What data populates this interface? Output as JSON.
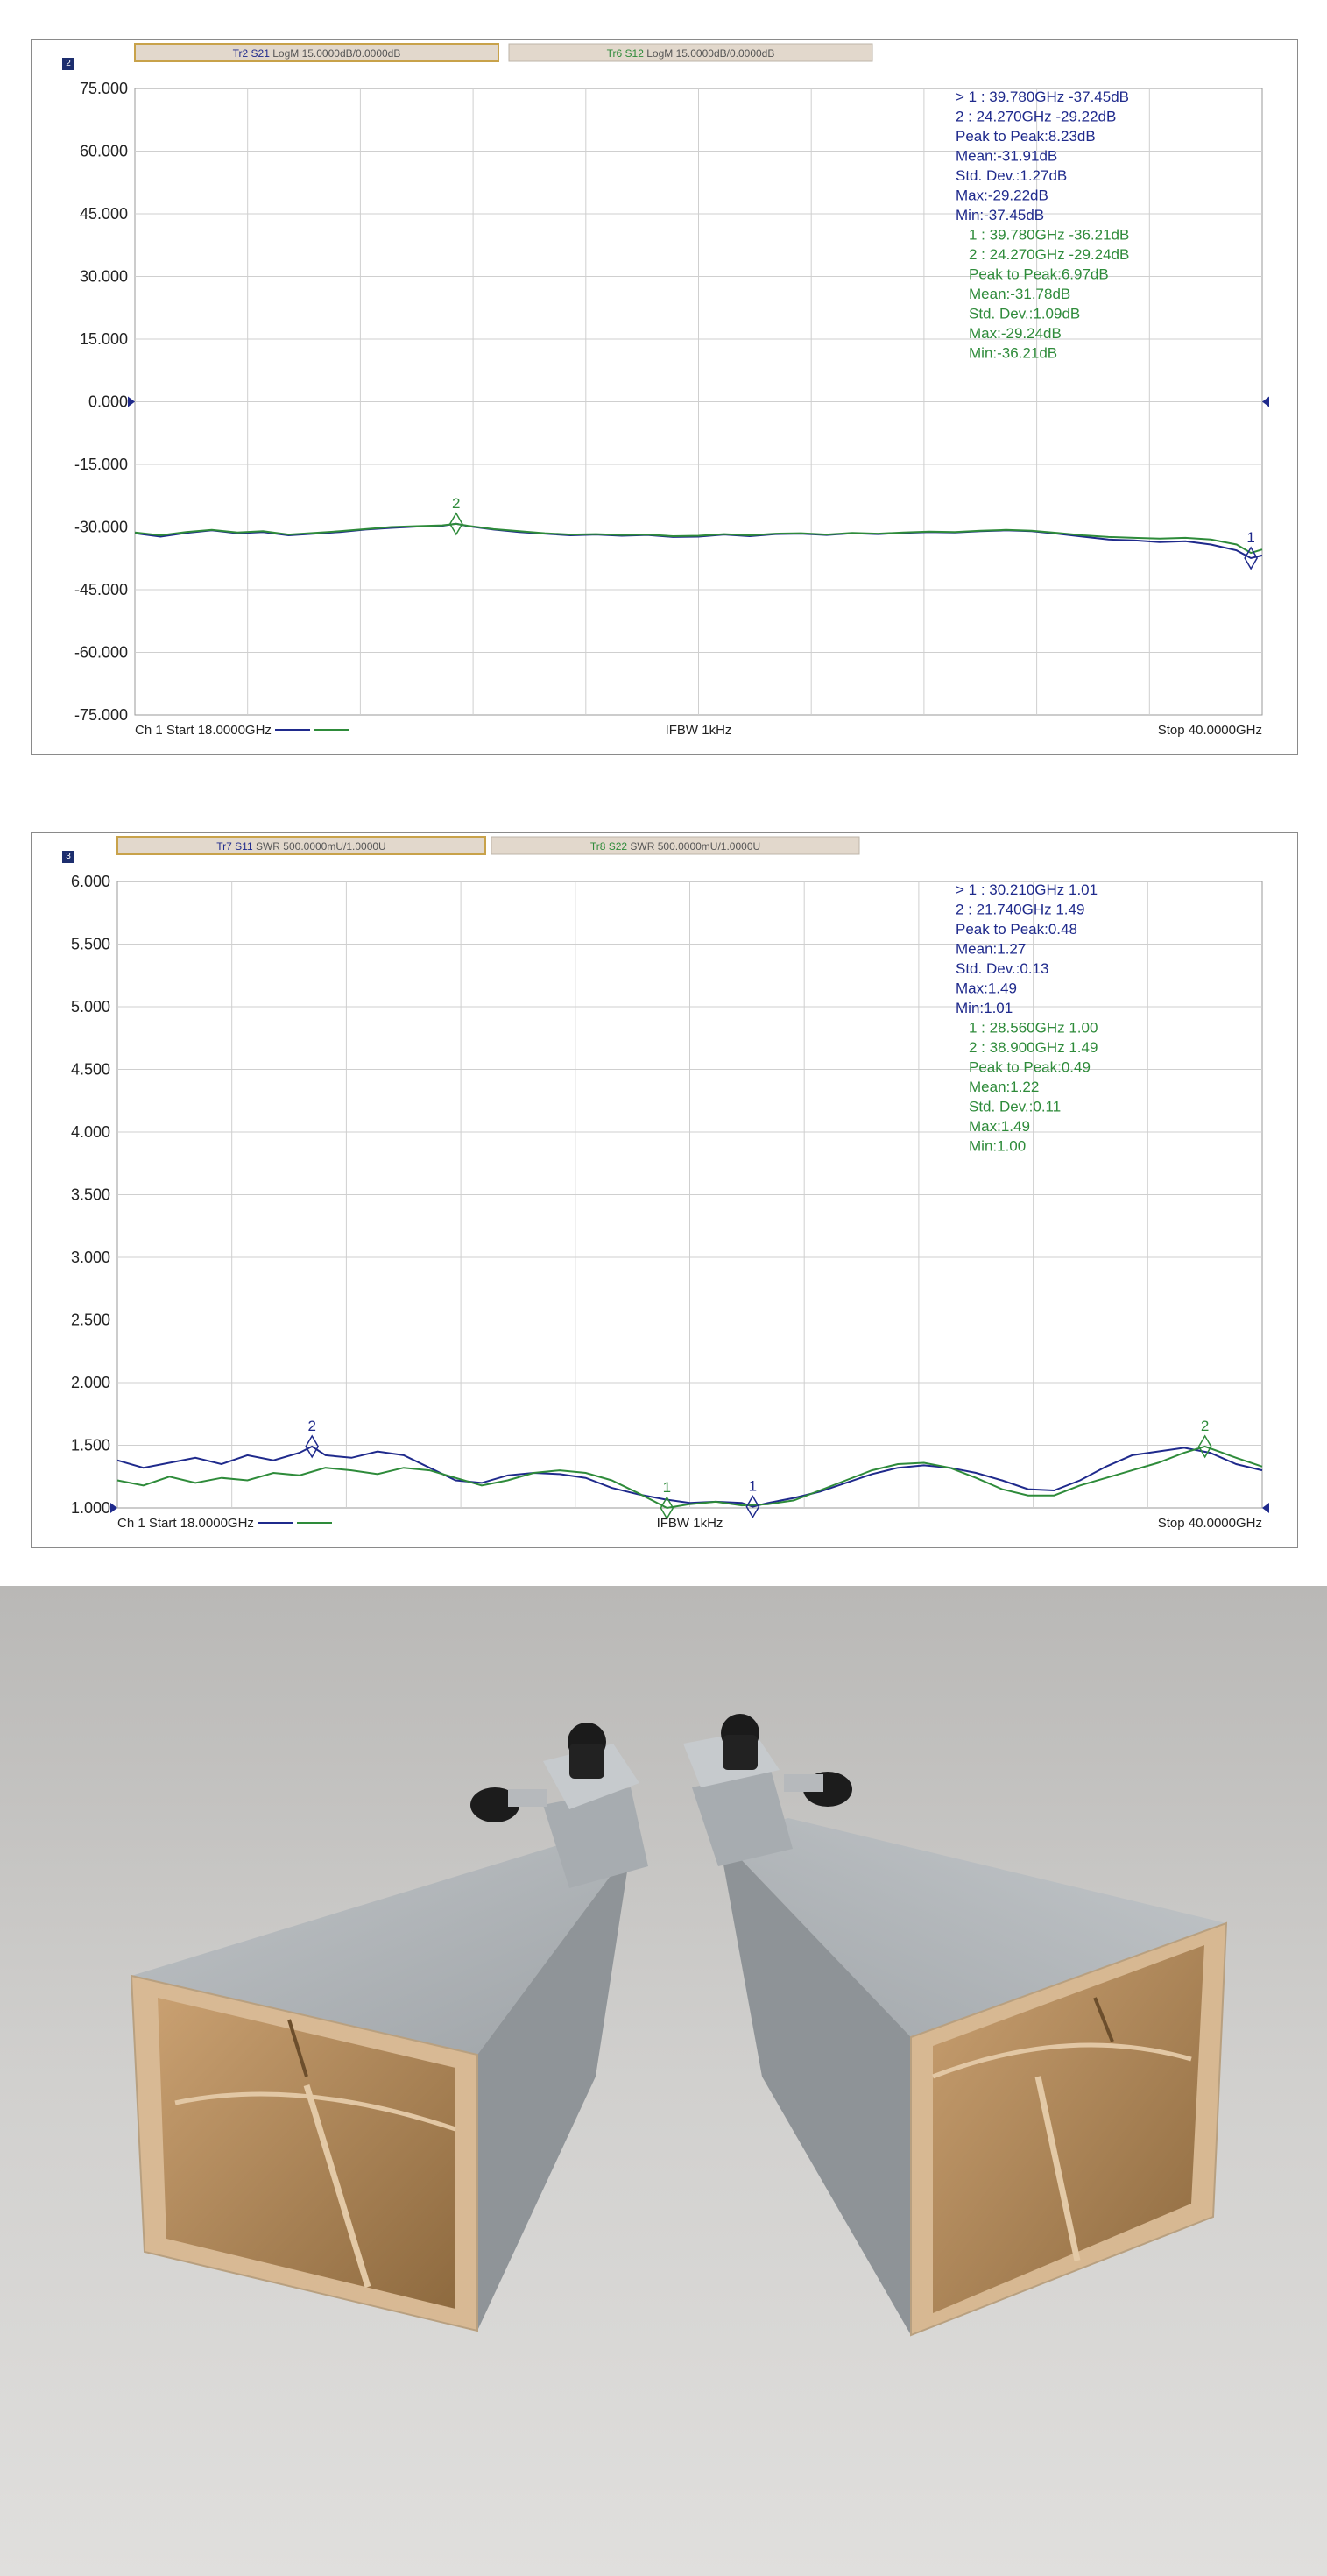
{
  "chart_data": [
    {
      "type": "line",
      "channel_badge": "2",
      "ylim": [
        -75,
        75
      ],
      "xlim": [
        18,
        40
      ],
      "y_ticks": [
        "75.000",
        "60.000",
        "45.000",
        "30.000",
        "15.000",
        "0.000",
        "-15.000",
        "-30.000",
        "-45.000",
        "-60.000",
        "-75.000"
      ],
      "reference_level": 0,
      "traces": [
        {
          "tag": "Tr2",
          "param": "S21",
          "format": "LogM 15.0000dB/0.0000dB",
          "color": "#1f2a8c"
        },
        {
          "tag": "Tr6",
          "param": "S12",
          "format": "LogM 15.0000dB/0.0000dB",
          "color": "#2e8b3a"
        }
      ],
      "series": [
        {
          "name": "S21",
          "color": "#1f2a8c",
          "x": [
            18.0,
            18.5,
            19.0,
            19.5,
            20.0,
            20.5,
            21.0,
            21.5,
            22.0,
            22.5,
            23.0,
            23.5,
            24.0,
            24.27,
            24.5,
            25.0,
            25.5,
            26.0,
            26.5,
            27.0,
            27.5,
            28.0,
            28.5,
            29.0,
            29.5,
            30.0,
            30.5,
            31.0,
            31.5,
            32.0,
            32.5,
            33.0,
            33.5,
            34.0,
            34.5,
            35.0,
            35.5,
            36.0,
            36.5,
            37.0,
            37.5,
            38.0,
            38.5,
            39.0,
            39.5,
            39.78,
            40.0
          ],
          "y": [
            -31.5,
            -32.3,
            -31.4,
            -30.8,
            -31.5,
            -31.2,
            -32.0,
            -31.6,
            -31.2,
            -30.6,
            -30.2,
            -29.9,
            -29.7,
            -29.22,
            -29.8,
            -30.6,
            -31.2,
            -31.6,
            -32.0,
            -31.8,
            -32.1,
            -31.9,
            -32.4,
            -32.3,
            -31.8,
            -32.2,
            -31.7,
            -31.6,
            -31.9,
            -31.5,
            -31.7,
            -31.4,
            -31.2,
            -31.3,
            -31.0,
            -30.8,
            -31.0,
            -31.6,
            -32.3,
            -33.0,
            -33.2,
            -33.6,
            -33.4,
            -34.2,
            -35.6,
            -37.45,
            -36.8
          ]
        },
        {
          "name": "S12",
          "color": "#2e8b3a",
          "x": [
            18.0,
            18.5,
            19.0,
            19.5,
            20.0,
            20.5,
            21.0,
            21.5,
            22.0,
            22.5,
            23.0,
            23.5,
            24.0,
            24.27,
            24.5,
            25.0,
            25.5,
            26.0,
            26.5,
            27.0,
            27.5,
            28.0,
            28.5,
            29.0,
            29.5,
            30.0,
            30.5,
            31.0,
            31.5,
            32.0,
            32.5,
            33.0,
            33.5,
            34.0,
            34.5,
            35.0,
            35.5,
            36.0,
            36.5,
            37.0,
            37.5,
            38.0,
            38.5,
            39.0,
            39.5,
            39.78,
            40.0
          ],
          "y": [
            -31.3,
            -32.0,
            -31.2,
            -30.7,
            -31.3,
            -31.0,
            -31.8,
            -31.4,
            -31.0,
            -30.5,
            -30.0,
            -29.8,
            -29.6,
            -29.24,
            -29.7,
            -30.5,
            -31.0,
            -31.5,
            -31.8,
            -31.7,
            -31.9,
            -31.8,
            -32.2,
            -32.1,
            -31.7,
            -32.0,
            -31.6,
            -31.5,
            -31.8,
            -31.4,
            -31.6,
            -31.3,
            -31.1,
            -31.2,
            -30.9,
            -30.7,
            -30.9,
            -31.4,
            -32.0,
            -32.4,
            -32.6,
            -32.8,
            -32.6,
            -33.0,
            -34.2,
            -36.21,
            -35.4
          ]
        }
      ],
      "markers": [
        {
          "label": "2",
          "x": 24.27,
          "series": "S12"
        },
        {
          "label": "1",
          "x": 39.78,
          "series": "S21"
        }
      ],
      "readout": {
        "blue": [
          "> 1   : 39.780GHz      -37.45dB",
          "   2   : 24.270GHz      -29.22dB",
          "Peak to Peak:8.23dB",
          "Mean:-31.91dB",
          "Std. Dev.:1.27dB",
          "Max:-29.22dB",
          "Min:-37.45dB"
        ],
        "green": [
          "1   : 39.780GHz      -36.21dB",
          "2   : 24.270GHz      -29.24dB",
          "Peak to Peak:6.97dB",
          "Mean:-31.78dB",
          "Std. Dev.:1.09dB",
          "Max:-29.24dB",
          "Min:-36.21dB"
        ]
      },
      "footer": {
        "left": "Ch 1 Start 18.0000GHz",
        "center": "IFBW 1kHz",
        "right": "Stop 40.0000GHz"
      },
      "grid": true
    },
    {
      "type": "line",
      "channel_badge": "3",
      "ylim": [
        1.0,
        6.0
      ],
      "xlim": [
        18,
        40
      ],
      "y_ticks": [
        "6.000",
        "5.500",
        "5.000",
        "4.500",
        "4.000",
        "3.500",
        "3.000",
        "2.500",
        "2.000",
        "1.500",
        "1.000"
      ],
      "reference_level": 1.0,
      "traces": [
        {
          "tag": "Tr7",
          "param": "S11",
          "format": "SWR 500.0000mU/1.0000U",
          "color": "#1f2a8c"
        },
        {
          "tag": "Tr8",
          "param": "S22",
          "format": "SWR 500.0000mU/1.0000U",
          "color": "#2e8b3a"
        }
      ],
      "series": [
        {
          "name": "S11",
          "color": "#1f2a8c",
          "x": [
            18.0,
            18.5,
            19.0,
            19.5,
            20.0,
            20.5,
            21.0,
            21.5,
            21.74,
            22.0,
            22.5,
            23.0,
            23.5,
            24.0,
            24.5,
            25.0,
            25.5,
            26.0,
            26.5,
            27.0,
            27.5,
            28.0,
            28.5,
            29.0,
            29.5,
            30.0,
            30.21,
            30.5,
            31.0,
            31.5,
            32.0,
            32.5,
            33.0,
            33.5,
            34.0,
            34.5,
            35.0,
            35.5,
            36.0,
            36.5,
            37.0,
            37.5,
            38.0,
            38.5,
            39.0,
            39.5,
            40.0
          ],
          "y": [
            1.38,
            1.32,
            1.36,
            1.4,
            1.35,
            1.42,
            1.38,
            1.44,
            1.49,
            1.42,
            1.4,
            1.45,
            1.42,
            1.32,
            1.22,
            1.2,
            1.26,
            1.28,
            1.27,
            1.24,
            1.16,
            1.11,
            1.07,
            1.04,
            1.05,
            1.04,
            1.01,
            1.04,
            1.08,
            1.13,
            1.2,
            1.27,
            1.32,
            1.34,
            1.32,
            1.28,
            1.22,
            1.15,
            1.14,
            1.22,
            1.33,
            1.42,
            1.45,
            1.48,
            1.44,
            1.35,
            1.3
          ]
        },
        {
          "name": "S22",
          "color": "#2e8b3a",
          "x": [
            18.0,
            18.5,
            19.0,
            19.5,
            20.0,
            20.5,
            21.0,
            21.5,
            22.0,
            22.5,
            23.0,
            23.5,
            24.0,
            24.5,
            25.0,
            25.5,
            26.0,
            26.5,
            27.0,
            27.5,
            28.0,
            28.56,
            29.0,
            29.5,
            30.0,
            30.5,
            31.0,
            31.5,
            32.0,
            32.5,
            33.0,
            33.5,
            34.0,
            34.5,
            35.0,
            35.5,
            36.0,
            36.5,
            37.0,
            37.5,
            38.0,
            38.5,
            38.9,
            39.5,
            40.0
          ],
          "y": [
            1.22,
            1.18,
            1.25,
            1.2,
            1.24,
            1.22,
            1.28,
            1.26,
            1.32,
            1.3,
            1.27,
            1.32,
            1.3,
            1.24,
            1.18,
            1.22,
            1.28,
            1.3,
            1.28,
            1.22,
            1.12,
            1.0,
            1.03,
            1.05,
            1.02,
            1.03,
            1.06,
            1.14,
            1.22,
            1.3,
            1.35,
            1.36,
            1.32,
            1.24,
            1.15,
            1.1,
            1.1,
            1.18,
            1.24,
            1.3,
            1.36,
            1.44,
            1.49,
            1.4,
            1.33
          ]
        }
      ],
      "markers": [
        {
          "label": "2",
          "x": 21.74,
          "series": "S11"
        },
        {
          "label": "1",
          "x": 28.56,
          "series": "S22"
        },
        {
          "label": "1",
          "x": 30.21,
          "series": "S11"
        },
        {
          "label": "2",
          "x": 38.9,
          "series": "S22"
        }
      ],
      "readout": {
        "blue": [
          "> 1   : 30.210GHz       1.01",
          "   2   : 21.740GHz       1.49",
          "Peak to Peak:0.48",
          "Mean:1.27",
          "Std. Dev.:0.13",
          "Max:1.49",
          "Min:1.01"
        ],
        "green": [
          "1   : 28.560GHz       1.00",
          "2   : 38.900GHz       1.49",
          "Peak to Peak:0.49",
          "Mean:1.22",
          "Std. Dev.:0.11",
          "Max:1.49",
          "Min:1.00"
        ]
      },
      "footer": {
        "left": "Ch 1 Start 18.0000GHz",
        "center": "IFBW 1kHz",
        "right": "Stop 40.0000GHz"
      },
      "grid": true
    }
  ],
  "colors": {
    "grid": "#cfcfcf",
    "tab_bg": "#e2d8cc",
    "tab_border_active": "#c8a24a",
    "blue": "#1f2a8c",
    "green": "#2e8b3a"
  }
}
